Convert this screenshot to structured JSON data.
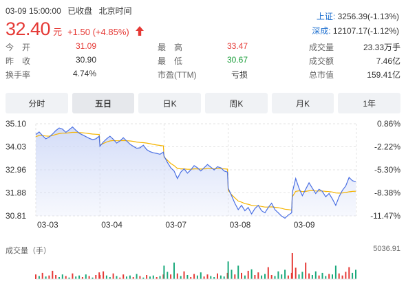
{
  "header": {
    "timestamp": "03-09 15:00:00",
    "status": "已收盘",
    "timezone": "北京时间"
  },
  "quote": {
    "price": "32.40",
    "unit": "元",
    "change": "+1.50 (+4.85%)"
  },
  "indices": [
    {
      "label": "上证:",
      "value": "3256.39(-1.13%)"
    },
    {
      "label": "深成:",
      "value": "12107.17(-1.12%)"
    }
  ],
  "stats": [
    [
      {
        "label": "今　开",
        "value": "31.09",
        "tone": "red"
      },
      {
        "label": "最　高",
        "value": "33.47",
        "tone": "red"
      },
      {
        "label": "成交量",
        "value": "23.33万手",
        "tone": "dark"
      }
    ],
    [
      {
        "label": "昨　收",
        "value": "30.90",
        "tone": "dark"
      },
      {
        "label": "最　低",
        "value": "30.67",
        "tone": "green"
      },
      {
        "label": "成交额",
        "value": "7.46亿",
        "tone": "dark"
      }
    ],
    [
      {
        "label": "换手率",
        "value": "4.74%",
        "tone": "dark"
      },
      {
        "label": "市盈(TTM)",
        "value": "亏损",
        "tone": "dark"
      },
      {
        "label": "总市值",
        "value": "159.41亿",
        "tone": "dark"
      }
    ]
  ],
  "tabs": [
    {
      "label": "分时",
      "active": false
    },
    {
      "label": "五日",
      "active": true
    },
    {
      "label": "日K",
      "active": false
    },
    {
      "label": "周K",
      "active": false
    },
    {
      "label": "月K",
      "active": false
    },
    {
      "label": "1年",
      "active": false
    }
  ],
  "colors": {
    "price_line": "#4a6fe3",
    "avg_line": "#f5b400",
    "area_top": "#cfd9f7",
    "up": "#e53935",
    "down": "#1aa97b",
    "grid": "#e3e3e3"
  },
  "chart_data": {
    "type": "line",
    "title": "",
    "xlabel": "",
    "ylabel": "",
    "ylim": [
      30.81,
      35.1
    ],
    "prev_close": 30.9,
    "y_ticks": [
      "35.10",
      "34.03",
      "32.96",
      "31.88",
      "30.81"
    ],
    "y_ticks_pct": [
      "0.86%",
      "-2.22%",
      "-5.30%",
      "-8.38%",
      "-11.47%"
    ],
    "days": [
      "03-03",
      "03-04",
      "03-07",
      "03-08",
      "03-09"
    ],
    "series": [
      {
        "key": "price",
        "days": [
          [
            34.6,
            34.72,
            34.55,
            34.4,
            34.48,
            34.62,
            34.78,
            34.9,
            34.85,
            34.7,
            34.82,
            34.95,
            34.8,
            34.66,
            34.58,
            34.5,
            34.42,
            34.36,
            34.4,
            34.52
          ],
          [
            34.05,
            34.25,
            34.4,
            34.52,
            34.38,
            34.2,
            34.3,
            34.45,
            34.3,
            34.15,
            34.05,
            33.96,
            33.98,
            34.1,
            33.9,
            33.8,
            33.75,
            33.72,
            33.68,
            33.78
          ],
          [
            33.6,
            33.3,
            33.05,
            32.9,
            32.55,
            32.85,
            33.0,
            32.8,
            32.95,
            33.15,
            33.05,
            32.9,
            33.05,
            33.2,
            33.08,
            32.95,
            33.1,
            33.05,
            32.9,
            32.85
          ],
          [
            32.1,
            31.75,
            31.4,
            31.1,
            31.3,
            31.05,
            31.2,
            30.9,
            31.15,
            31.3,
            31.05,
            30.95,
            31.2,
            31.4,
            31.1,
            30.95,
            30.8,
            30.7,
            30.85,
            30.95
          ],
          [
            31.9,
            32.55,
            32.1,
            31.75,
            32.05,
            32.35,
            32.1,
            31.85,
            32.05,
            31.95,
            31.7,
            31.85,
            31.6,
            31.3,
            31.7,
            32.0,
            32.2,
            32.6,
            32.45,
            32.4
          ]
        ]
      },
      {
        "key": "avg",
        "days": [
          [
            34.5,
            34.55,
            34.55,
            34.53,
            34.52,
            34.55,
            34.6,
            34.64,
            34.66,
            34.66,
            34.68,
            34.7,
            34.7,
            34.69,
            34.68,
            34.66,
            34.64,
            34.62,
            34.61,
            34.6
          ],
          [
            34.1,
            34.18,
            34.25,
            34.3,
            34.32,
            34.31,
            34.31,
            34.32,
            34.31,
            34.3,
            34.28,
            34.25,
            34.23,
            34.22,
            34.2,
            34.17,
            34.14,
            34.11,
            34.09,
            34.07
          ],
          [
            33.55,
            33.4,
            33.25,
            33.15,
            33.02,
            33.0,
            33.0,
            32.98,
            32.98,
            33.0,
            33.0,
            32.99,
            33.0,
            33.01,
            33.01,
            33.0,
            33.01,
            33.01,
            33.0,
            32.99
          ],
          [
            32.0,
            31.8,
            31.65,
            31.5,
            31.45,
            31.38,
            31.35,
            31.3,
            31.28,
            31.28,
            31.25,
            31.22,
            31.22,
            31.23,
            31.21,
            31.19,
            31.16,
            31.12,
            31.1,
            31.08
          ],
          [
            31.7,
            31.95,
            31.98,
            31.94,
            31.95,
            31.98,
            31.99,
            31.97,
            31.97,
            31.97,
            31.95,
            31.94,
            31.92,
            31.88,
            31.87,
            31.88,
            31.9,
            31.93,
            31.95,
            31.96
          ]
        ]
      }
    ],
    "volume": {
      "label": "成交量（手）",
      "max_label": "5036.91",
      "max": 5036.91,
      "days": [
        [
          900,
          600,
          1200,
          500,
          700,
          1600,
          800,
          400,
          900,
          600,
          300,
          1100,
          500,
          700,
          400,
          900,
          600,
          300,
          800,
          1300
        ],
        [
          800,
          1500,
          700,
          400,
          1100,
          600,
          300,
          900,
          500,
          700,
          400,
          1000,
          600,
          300,
          800,
          500,
          700,
          400,
          600,
          900
        ],
        [
          2600,
          1400,
          900,
          3200,
          1100,
          600,
          1500,
          800,
          400,
          1000,
          700,
          1300,
          500,
          900,
          600,
          400,
          1100,
          700,
          500,
          1200
        ],
        [
          3400,
          1800,
          900,
          2600,
          1200,
          700,
          1600,
          1900,
          800,
          1300,
          700,
          1000,
          2300,
          800,
          600,
          1500,
          900,
          1800,
          700,
          1200
        ],
        [
          5036.91,
          2200,
          900,
          1400,
          3200,
          1100,
          800,
          1500,
          700,
          1200,
          600,
          1000,
          900,
          2600,
          1100,
          700,
          1400,
          2300,
          1200,
          1800
        ]
      ],
      "up": [
        [
          1,
          0,
          1,
          0,
          1,
          1,
          1,
          0,
          0,
          1,
          0,
          1,
          0,
          0,
          1,
          0,
          1,
          0,
          1,
          1
        ],
        [
          1,
          1,
          0,
          0,
          1,
          0,
          1,
          1,
          0,
          0,
          1,
          0,
          1,
          0,
          1,
          0,
          0,
          1,
          0,
          1
        ],
        [
          0,
          0,
          1,
          0,
          1,
          0,
          1,
          0,
          1,
          1,
          0,
          0,
          1,
          1,
          0,
          0,
          1,
          0,
          0,
          1
        ],
        [
          0,
          0,
          1,
          0,
          1,
          0,
          1,
          0,
          1,
          1,
          0,
          0,
          1,
          1,
          0,
          0,
          0,
          0,
          1,
          1
        ],
        [
          1,
          1,
          0,
          0,
          1,
          1,
          0,
          0,
          1,
          0,
          0,
          1,
          0,
          0,
          1,
          1,
          1,
          1,
          0,
          0
        ]
      ]
    }
  }
}
